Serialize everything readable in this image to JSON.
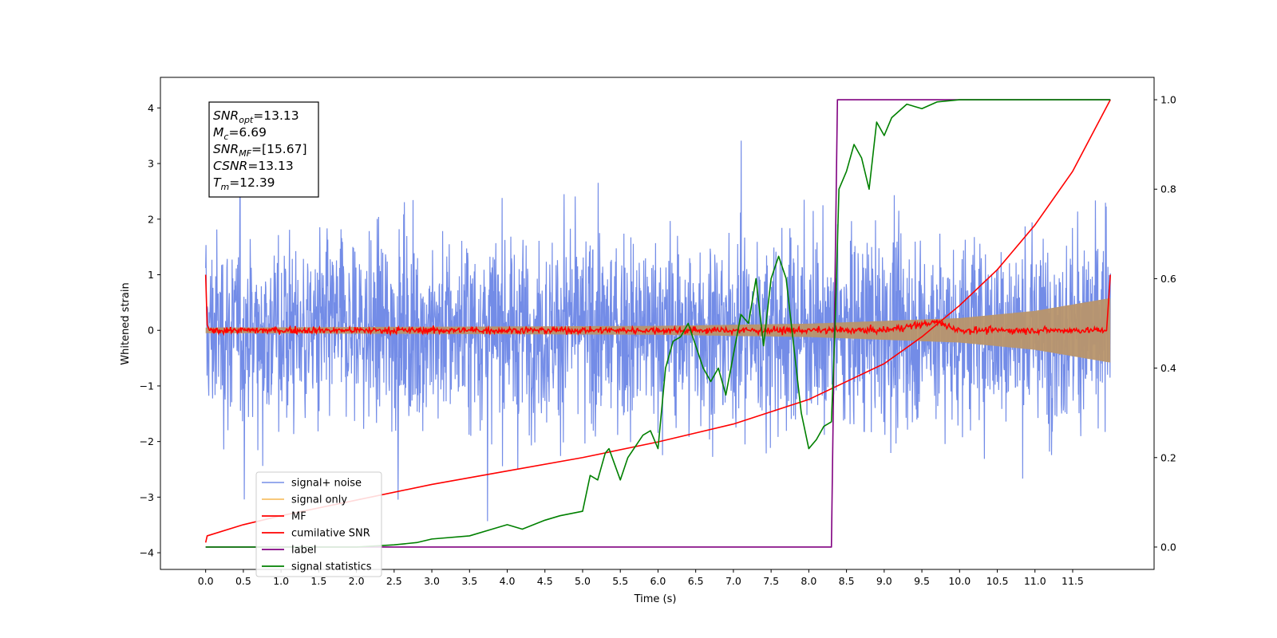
{
  "chart_data": {
    "type": "line",
    "xlabel": "Time (s)",
    "ylabel": "Whitened strain",
    "xlim": [
      -0.6,
      12.58
    ],
    "ylim": [
      -4.3,
      4.55
    ],
    "ylim_right": [
      -0.05,
      1.05
    ],
    "grid": false,
    "legend_position": "lower-left",
    "x_ticks": [
      "0.0",
      "0.5",
      "1.0",
      "1.5",
      "2.0",
      "2.5",
      "3.0",
      "3.5",
      "4.0",
      "4.5",
      "5.0",
      "5.5",
      "6.0",
      "6.5",
      "7.0",
      "7.5",
      "8.0",
      "8.5",
      "9.0",
      "9.5",
      "10.0",
      "10.5",
      "11.0",
      "11.5"
    ],
    "y_ticks_left": [
      "4",
      "3",
      "2",
      "1",
      "0",
      "−1",
      "−2",
      "−3",
      "−4"
    ],
    "y_ticks_right": [
      "1.0",
      "0.8",
      "0.6",
      "0.4",
      "0.2",
      "0.0"
    ],
    "annotation": {
      "lines": [
        {
          "sym": "SNR",
          "sub": "opt",
          "value": "=13.13"
        },
        {
          "sym": "M",
          "sub": "c",
          "value": "=6.69"
        },
        {
          "sym": "SNR",
          "sub": "MF",
          "value": "=[15.67]"
        },
        {
          "sym": "CSNR",
          "sub": "",
          "value": "=13.13"
        },
        {
          "sym": "T",
          "sub": "m",
          "value": "=12.39"
        }
      ]
    },
    "series": [
      {
        "name": "signal+ noise",
        "axis": "left",
        "color": "#6b86e6",
        "shape": "noise",
        "x_range": [
          0,
          12
        ],
        "amplitude_range": [
          -3.9,
          4.2
        ]
      },
      {
        "name": "signal only",
        "axis": "left",
        "color": "#f5b041",
        "shape": "chirp",
        "x_range": [
          0,
          12
        ],
        "envelope": [
          [
            0,
            0.05
          ],
          [
            6,
            0.08
          ],
          [
            8,
            0.12
          ],
          [
            10,
            0.22
          ],
          [
            11,
            0.35
          ],
          [
            12,
            0.58
          ]
        ]
      },
      {
        "name": "MF",
        "axis": "left",
        "color": "#ff0000",
        "x": [
          0,
          0.02,
          0.05,
          1,
          2,
          3,
          4,
          5,
          6,
          7,
          8,
          9,
          9.7,
          10,
          11,
          11.95,
          12
        ],
        "y": [
          1.0,
          0.1,
          0.0,
          0.0,
          0.0,
          0.0,
          0.0,
          0.0,
          0.0,
          0.0,
          0.0,
          0.0,
          0.15,
          0.0,
          0.0,
          0.0,
          1.0
        ]
      },
      {
        "name": "cumilative SNR",
        "axis": "right",
        "color": "#ff0000",
        "x": [
          0,
          0.02,
          0.5,
          1,
          2,
          3,
          4,
          5,
          6,
          7,
          8,
          8.5,
          9,
          9.5,
          10,
          10.5,
          11,
          11.5,
          12
        ],
        "y": [
          0.01,
          0.025,
          0.05,
          0.07,
          0.105,
          0.14,
          0.17,
          0.2,
          0.235,
          0.275,
          0.33,
          0.37,
          0.41,
          0.47,
          0.54,
          0.62,
          0.72,
          0.84,
          1.0
        ]
      },
      {
        "name": "label",
        "axis": "right",
        "color": "#800080",
        "x": [
          0,
          8.3,
          8.38,
          12
        ],
        "y": [
          0.0,
          0.0,
          1.0,
          1.0
        ]
      },
      {
        "name": "signal statistics",
        "axis": "right",
        "color": "#008000",
        "x": [
          0,
          1,
          2,
          2.5,
          2.8,
          3,
          3.5,
          3.8,
          4,
          4.2,
          4.5,
          4.7,
          5,
          5.1,
          5.2,
          5.3,
          5.35,
          5.5,
          5.6,
          5.8,
          5.9,
          6,
          6.1,
          6.2,
          6.3,
          6.4,
          6.5,
          6.6,
          6.7,
          6.8,
          6.9,
          7.0,
          7.1,
          7.2,
          7.3,
          7.4,
          7.5,
          7.6,
          7.7,
          7.8,
          7.9,
          8.0,
          8.1,
          8.2,
          8.3,
          8.35,
          8.4,
          8.5,
          8.6,
          8.7,
          8.8,
          8.9,
          9.0,
          9.1,
          9.3,
          9.5,
          9.7,
          10,
          10.5,
          11,
          11.5,
          12
        ],
        "y": [
          0.0,
          0.0,
          0.0,
          0.005,
          0.01,
          0.018,
          0.025,
          0.04,
          0.05,
          0.04,
          0.06,
          0.07,
          0.08,
          0.16,
          0.15,
          0.21,
          0.22,
          0.15,
          0.2,
          0.25,
          0.26,
          0.22,
          0.4,
          0.46,
          0.47,
          0.5,
          0.45,
          0.4,
          0.37,
          0.4,
          0.34,
          0.43,
          0.52,
          0.5,
          0.6,
          0.45,
          0.6,
          0.65,
          0.6,
          0.45,
          0.3,
          0.22,
          0.24,
          0.27,
          0.28,
          0.5,
          0.8,
          0.84,
          0.9,
          0.87,
          0.8,
          0.95,
          0.92,
          0.96,
          0.99,
          0.98,
          0.995,
          1.0,
          1.0,
          1.0,
          1.0,
          1.0
        ]
      }
    ]
  }
}
